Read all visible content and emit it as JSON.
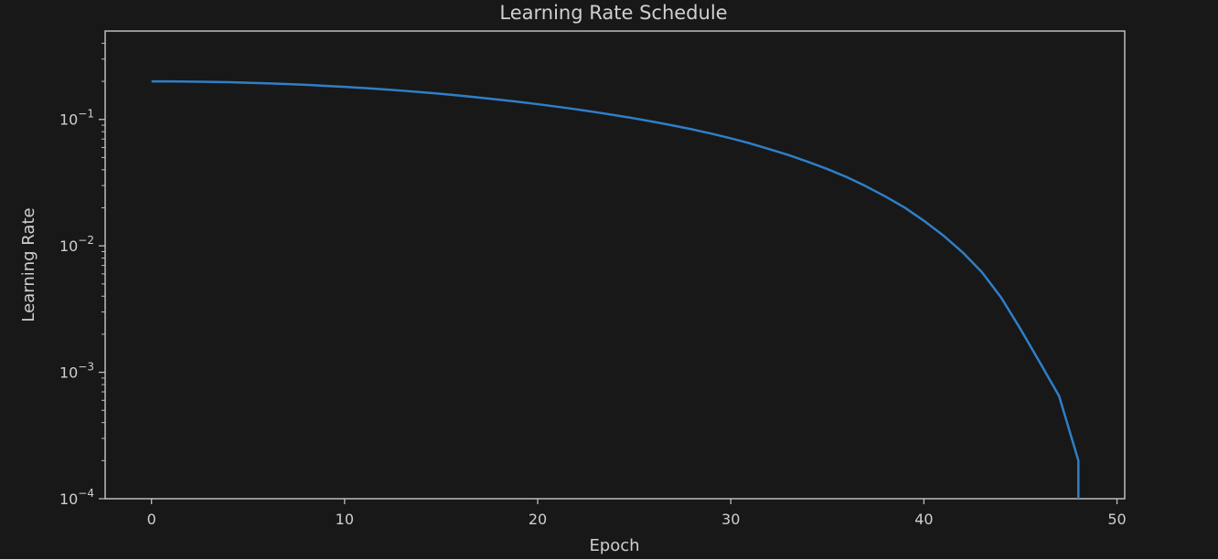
{
  "chart_data": {
    "type": "line",
    "title": "Learning Rate Schedule",
    "xlabel": "Epoch",
    "ylabel": "Learning Rate",
    "yscale": "log",
    "xlim": [
      -2.4,
      50.4
    ],
    "ylim": [
      0.0001,
      0.5
    ],
    "grid": false,
    "x_ticks": [
      {
        "value": 0,
        "label": "0"
      },
      {
        "value": 10,
        "label": "10"
      },
      {
        "value": 20,
        "label": "20"
      },
      {
        "value": 30,
        "label": "30"
      },
      {
        "value": 40,
        "label": "40"
      },
      {
        "value": 50,
        "label": "50"
      }
    ],
    "y_ticks": [
      {
        "value": 0.1,
        "base": "10",
        "exp": "−1"
      },
      {
        "value": 0.01,
        "base": "10",
        "exp": "−2"
      },
      {
        "value": 0.001,
        "base": "10",
        "exp": "−3"
      },
      {
        "value": 0.0001,
        "base": "10",
        "exp": "−4"
      }
    ],
    "series": [
      {
        "color": "#2f7fc7",
        "x": [
          0,
          1,
          2,
          3,
          4,
          5,
          6,
          7,
          8,
          9,
          10,
          11,
          12,
          13,
          14,
          15,
          16,
          17,
          18,
          19,
          20,
          21,
          22,
          23,
          24,
          25,
          26,
          27,
          28,
          29,
          30,
          31,
          32,
          33,
          34,
          35,
          36,
          37,
          38,
          39,
          40,
          41,
          42,
          43,
          44,
          45,
          46,
          47,
          48,
          48
        ],
        "y": [
          0.2,
          0.1998,
          0.1992,
          0.1982,
          0.1968,
          0.1951,
          0.1929,
          0.1904,
          0.1876,
          0.1844,
          0.1809,
          0.1771,
          0.1731,
          0.1687,
          0.1641,
          0.1592,
          0.1541,
          0.1488,
          0.1433,
          0.1377,
          0.132,
          0.1261,
          0.1202,
          0.1141,
          0.108,
          0.102,
          0.0957,
          0.0896,
          0.0834,
          0.0772,
          0.0709,
          0.0646,
          0.0582,
          0.0522,
          0.0462,
          0.0405,
          0.035,
          0.0296,
          0.0246,
          0.0201,
          0.0158,
          0.0121,
          0.0089,
          0.0062,
          0.0039,
          0.0022,
          0.0012,
          0.00065,
          0.0002,
          0.0001
        ]
      }
    ]
  },
  "colors": {
    "background": "#181818",
    "axes": "#bdbdbd",
    "text": "#cfcfcf",
    "line": "#2f7fc7"
  }
}
